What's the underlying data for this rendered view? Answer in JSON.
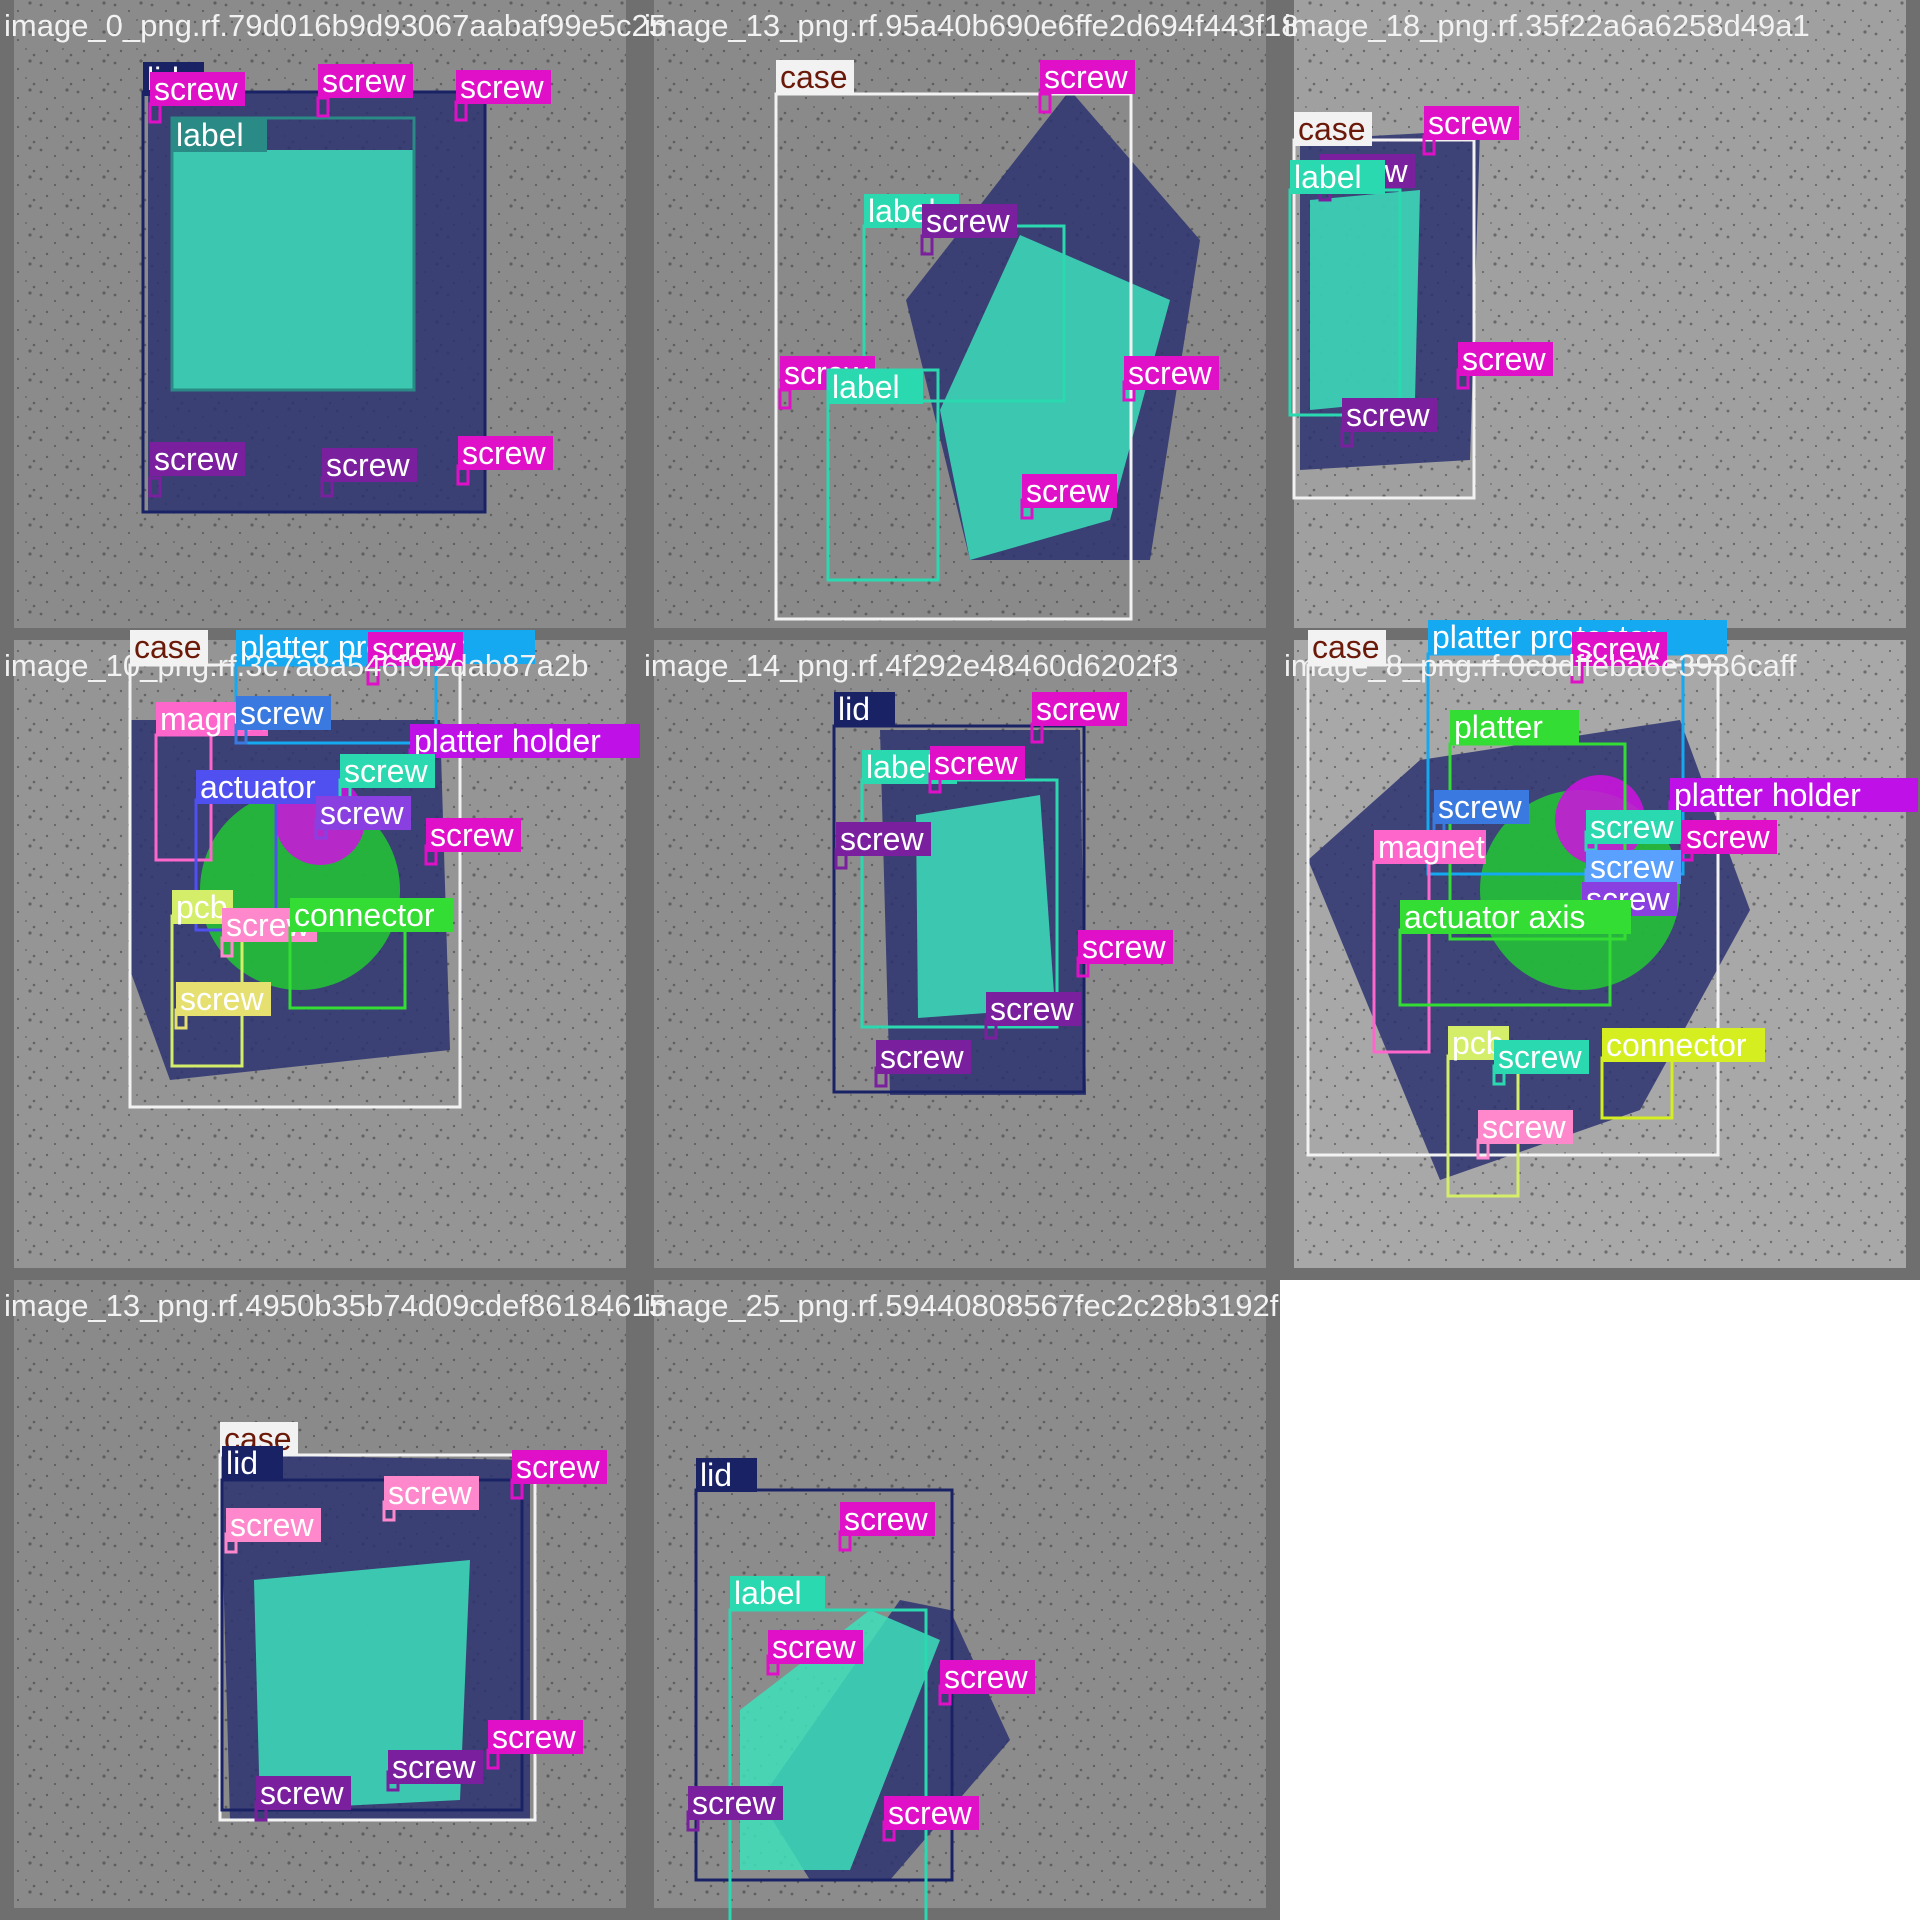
{
  "mosaic": {
    "tiles": [
      {
        "caption": "image_0_png.rf.79d016b9d93067aabaf99e5c25",
        "tint": "#8b8b8b",
        "annotations": [
          {
            "label": "lid",
            "color": "#1a2266",
            "text_color": "#ffffff"
          },
          {
            "label": "label",
            "color": "#2a8a86",
            "text_color": "#ffffff"
          },
          {
            "label": "screw",
            "color": "#e010c8",
            "text_color": "#ffffff"
          },
          {
            "label": "screw",
            "color": "#e010c8",
            "text_color": "#ffffff"
          },
          {
            "label": "screw",
            "color": "#e010c8",
            "text_color": "#ffffff"
          },
          {
            "label": "screw",
            "color": "#7a1f9e",
            "text_color": "#ffffff"
          },
          {
            "label": "screw",
            "color": "#7a1f9e",
            "text_color": "#ffffff"
          },
          {
            "label": "screw",
            "color": "#e010c8",
            "text_color": "#ffffff"
          }
        ]
      },
      {
        "caption": "image_13_png.rf.95a40b690e6ffe2d694f443f18",
        "tint": "#8a8a8a",
        "annotations": [
          {
            "label": "case",
            "color": "#f2f2f2",
            "text_color": "#6b1a0a"
          },
          {
            "label": "screw",
            "color": "#e010c8",
            "text_color": "#ffffff"
          },
          {
            "label": "label",
            "color": "#2ad9b0",
            "text_color": "#ffffff"
          },
          {
            "label": "screw",
            "color": "#7a1f9e",
            "text_color": "#ffffff"
          },
          {
            "label": "screw",
            "color": "#e010c8",
            "text_color": "#ffffff"
          },
          {
            "label": "label",
            "color": "#2ad9b0",
            "text_color": "#ffffff"
          },
          {
            "label": "screw",
            "color": "#e010c8",
            "text_color": "#ffffff"
          },
          {
            "label": "screw",
            "color": "#e010c8",
            "text_color": "#ffffff"
          }
        ]
      },
      {
        "caption": "image_18_png.rf.35f22a6a6258d49a1",
        "tint": "#a0a0a0",
        "annotations": [
          {
            "label": "case",
            "color": "#f2f2f2",
            "text_color": "#6b1a0a"
          },
          {
            "label": "screw",
            "color": "#e010c8",
            "text_color": "#ffffff"
          },
          {
            "label": "screw",
            "color": "#7a1f9e",
            "text_color": "#ffffff"
          },
          {
            "label": "label",
            "color": "#2ad9b0",
            "text_color": "#ffffff"
          },
          {
            "label": "screw",
            "color": "#e010c8",
            "text_color": "#ffffff"
          },
          {
            "label": "screw",
            "color": "#7a1f9e",
            "text_color": "#ffffff"
          }
        ]
      },
      {
        "caption": "image_10_png.rf.3c7a8a546f9f2dab87a2b",
        "tint": "#959595",
        "annotations": [
          {
            "label": "case",
            "color": "#f2f2f2",
            "text_color": "#6b1a0a"
          },
          {
            "label": "platter protector",
            "color": "#14a9f0",
            "text_color": "#ffffff"
          },
          {
            "label": "screw",
            "color": "#e010c8",
            "text_color": "#ffffff"
          },
          {
            "label": "magnet",
            "color": "#ff66cc",
            "text_color": "#ffffff"
          },
          {
            "label": "screw",
            "color": "#3a7ae0",
            "text_color": "#ffffff"
          },
          {
            "label": "platter holder",
            "color": "#c010e8",
            "text_color": "#ffffff"
          },
          {
            "label": "actuator",
            "color": "#5050f0",
            "text_color": "#ffffff"
          },
          {
            "label": "screw",
            "color": "#2ad9b0",
            "text_color": "#ffffff"
          },
          {
            "label": "screw",
            "color": "#8a40e0",
            "text_color": "#ffffff"
          },
          {
            "label": "screw",
            "color": "#e010c8",
            "text_color": "#ffffff"
          },
          {
            "label": "pcb",
            "color": "#d4ee6a",
            "text_color": "#ffffff"
          },
          {
            "label": "screw",
            "color": "#ff88cc",
            "text_color": "#ffffff"
          },
          {
            "label": "connector",
            "color": "#33dd33",
            "text_color": "#ffffff"
          },
          {
            "label": "screw",
            "color": "#e6e070",
            "text_color": "#ffffff"
          }
        ]
      },
      {
        "caption": "image_14_png.rf.4f292e48460d6202f3",
        "tint": "#8e8e8e",
        "annotations": [
          {
            "label": "lid",
            "color": "#1a2266",
            "text_color": "#ffffff"
          },
          {
            "label": "screw",
            "color": "#e010c8",
            "text_color": "#ffffff"
          },
          {
            "label": "label",
            "color": "#2ad9b0",
            "text_color": "#ffffff"
          },
          {
            "label": "screw",
            "color": "#e010c8",
            "text_color": "#ffffff"
          },
          {
            "label": "screw",
            "color": "#7a1f9e",
            "text_color": "#ffffff"
          },
          {
            "label": "screw",
            "color": "#e010c8",
            "text_color": "#ffffff"
          },
          {
            "label": "screw",
            "color": "#7a1f9e",
            "text_color": "#ffffff"
          },
          {
            "label": "screw",
            "color": "#7a1f9e",
            "text_color": "#ffffff"
          }
        ]
      },
      {
        "caption": "image_8_png.rf.0c8dffeba6e3936caff",
        "tint": "#a8a8a8",
        "annotations": [
          {
            "label": "case",
            "color": "#f2f2f2",
            "text_color": "#6b1a0a"
          },
          {
            "label": "platter protector",
            "color": "#14a9f0",
            "text_color": "#ffffff"
          },
          {
            "label": "screw",
            "color": "#e010c8",
            "text_color": "#ffffff"
          },
          {
            "label": "platter",
            "color": "#33dd33",
            "text_color": "#ffffff"
          },
          {
            "label": "platter holder",
            "color": "#c010e8",
            "text_color": "#ffffff"
          },
          {
            "label": "screw",
            "color": "#3a7ae0",
            "text_color": "#ffffff"
          },
          {
            "label": "screw",
            "color": "#2ad9b0",
            "text_color": "#ffffff"
          },
          {
            "label": "screw",
            "color": "#e010c8",
            "text_color": "#ffffff"
          },
          {
            "label": "magnet",
            "color": "#ff66cc",
            "text_color": "#ffffff"
          },
          {
            "label": "screw",
            "color": "#5aa0ff",
            "text_color": "#ffffff"
          },
          {
            "label": "screw",
            "color": "#8a40e0",
            "text_color": "#ffffff"
          },
          {
            "label": "actuator axis",
            "color": "#33dd33",
            "text_color": "#ffffff"
          },
          {
            "label": "pcb",
            "color": "#d4ee6a",
            "text_color": "#ffffff"
          },
          {
            "label": "screw",
            "color": "#2ad9b0",
            "text_color": "#ffffff"
          },
          {
            "label": "connector",
            "color": "#d4ee20",
            "text_color": "#ffffff"
          },
          {
            "label": "screw",
            "color": "#ff88cc",
            "text_color": "#ffffff"
          }
        ]
      },
      {
        "caption": "image_13_png.rf.4950b35b74d09cdef86184615",
        "tint": "#8a8a8a",
        "annotations": [
          {
            "label": "case",
            "color": "#f2f2f2",
            "text_color": "#6b1a0a"
          },
          {
            "label": "lid",
            "color": "#1a2266",
            "text_color": "#ffffff"
          },
          {
            "label": "screw",
            "color": "#e010c8",
            "text_color": "#ffffff"
          },
          {
            "label": "screw",
            "color": "#ff88cc",
            "text_color": "#ffffff"
          },
          {
            "label": "screw",
            "color": "#ff88cc",
            "text_color": "#ffffff"
          },
          {
            "label": "screw",
            "color": "#e010c8",
            "text_color": "#ffffff"
          },
          {
            "label": "screw",
            "color": "#7a1f9e",
            "text_color": "#ffffff"
          },
          {
            "label": "screw",
            "color": "#7a1f9e",
            "text_color": "#ffffff"
          }
        ]
      },
      {
        "caption": "image_25_png.rf.59440808567fec2c28b3192f",
        "tint": "#8c8c8c",
        "annotations": [
          {
            "label": "lid",
            "color": "#1a2266",
            "text_color": "#ffffff"
          },
          {
            "label": "screw",
            "color": "#e010c8",
            "text_color": "#ffffff"
          },
          {
            "label": "label",
            "color": "#2ad9b0",
            "text_color": "#ffffff"
          },
          {
            "label": "screw",
            "color": "#e010c8",
            "text_color": "#ffffff"
          },
          {
            "label": "screw",
            "color": "#e010c8",
            "text_color": "#ffffff"
          },
          {
            "label": "screw",
            "color": "#7a1f9e",
            "text_color": "#ffffff"
          },
          {
            "label": "screw",
            "color": "#e010c8",
            "text_color": "#ffffff"
          }
        ]
      }
    ]
  }
}
